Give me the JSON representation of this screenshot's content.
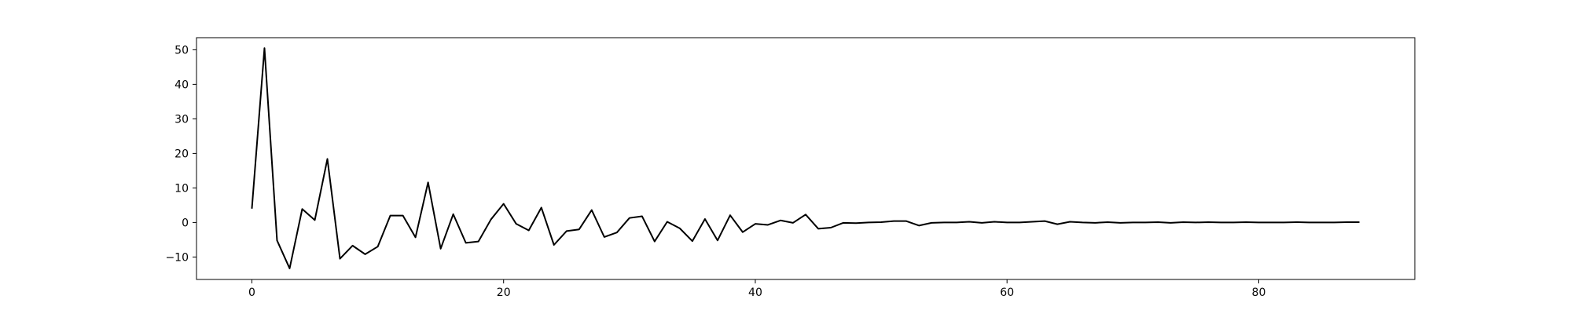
{
  "chart_data": {
    "type": "line",
    "title": "",
    "xlabel": "",
    "ylabel": "",
    "xlim": [
      -4.4,
      92.4
    ],
    "ylim": [
      -16.5,
      53.5
    ],
    "xticks": [
      0,
      20,
      40,
      60,
      80
    ],
    "yticks": [
      -10,
      0,
      10,
      20,
      30,
      40,
      50
    ],
    "xtick_labels": [
      "0",
      "20",
      "40",
      "60",
      "80"
    ],
    "ytick_labels": [
      "−10",
      "0",
      "10",
      "20",
      "30",
      "40",
      "50"
    ],
    "grid": false,
    "legend": "none",
    "line_color": "#000000",
    "series": [
      {
        "x": [
          0,
          1,
          2,
          3,
          4,
          5,
          6,
          7,
          8,
          9,
          10,
          11,
          12,
          13,
          14,
          15,
          16,
          17,
          18,
          19,
          20,
          21,
          22,
          23,
          24,
          25,
          26,
          27,
          28,
          29,
          30,
          31,
          32,
          33,
          34,
          35,
          36,
          37,
          38,
          39,
          40,
          41,
          42,
          43,
          44,
          45,
          46,
          47,
          48,
          49,
          50,
          51,
          52,
          53,
          54,
          55,
          56,
          57,
          58,
          59,
          60,
          61,
          62,
          63,
          64,
          65,
          66,
          67,
          68,
          69,
          70,
          71,
          72,
          73,
          74,
          75,
          76,
          77,
          78,
          79,
          80,
          81,
          82,
          83,
          84,
          85,
          86,
          87,
          88
        ],
        "values": [
          4.0,
          50.5,
          -5.2,
          -13.3,
          3.9,
          0.7,
          18.4,
          -10.5,
          -6.7,
          -9.2,
          -7.0,
          2.0,
          2.0,
          -4.3,
          11.6,
          -7.6,
          2.4,
          -5.9,
          -5.5,
          0.9,
          5.4,
          -0.4,
          -2.3,
          4.3,
          -6.5,
          -2.5,
          -2.0,
          3.6,
          -4.2,
          -2.9,
          1.3,
          1.8,
          -5.5,
          0.2,
          -1.7,
          -5.4,
          1.0,
          -5.2,
          2.1,
          -2.8,
          -0.4,
          -0.7,
          0.6,
          -0.1,
          2.3,
          -1.8,
          -1.5,
          -0.1,
          -0.2,
          0.0,
          0.1,
          0.4,
          0.4,
          -0.9,
          -0.1,
          0.0,
          0.0,
          0.2,
          -0.1,
          0.2,
          0.0,
          0.0,
          0.2,
          0.4,
          -0.5,
          0.2,
          0.0,
          -0.1,
          0.1,
          -0.1,
          0.0,
          0.0,
          0.1,
          -0.1,
          0.1,
          0.0,
          0.1,
          0.0,
          0.0,
          0.1,
          0.0,
          0.0,
          0.0,
          0.1,
          0.0,
          0.0,
          0.0,
          0.1,
          0.1
        ]
      }
    ]
  }
}
